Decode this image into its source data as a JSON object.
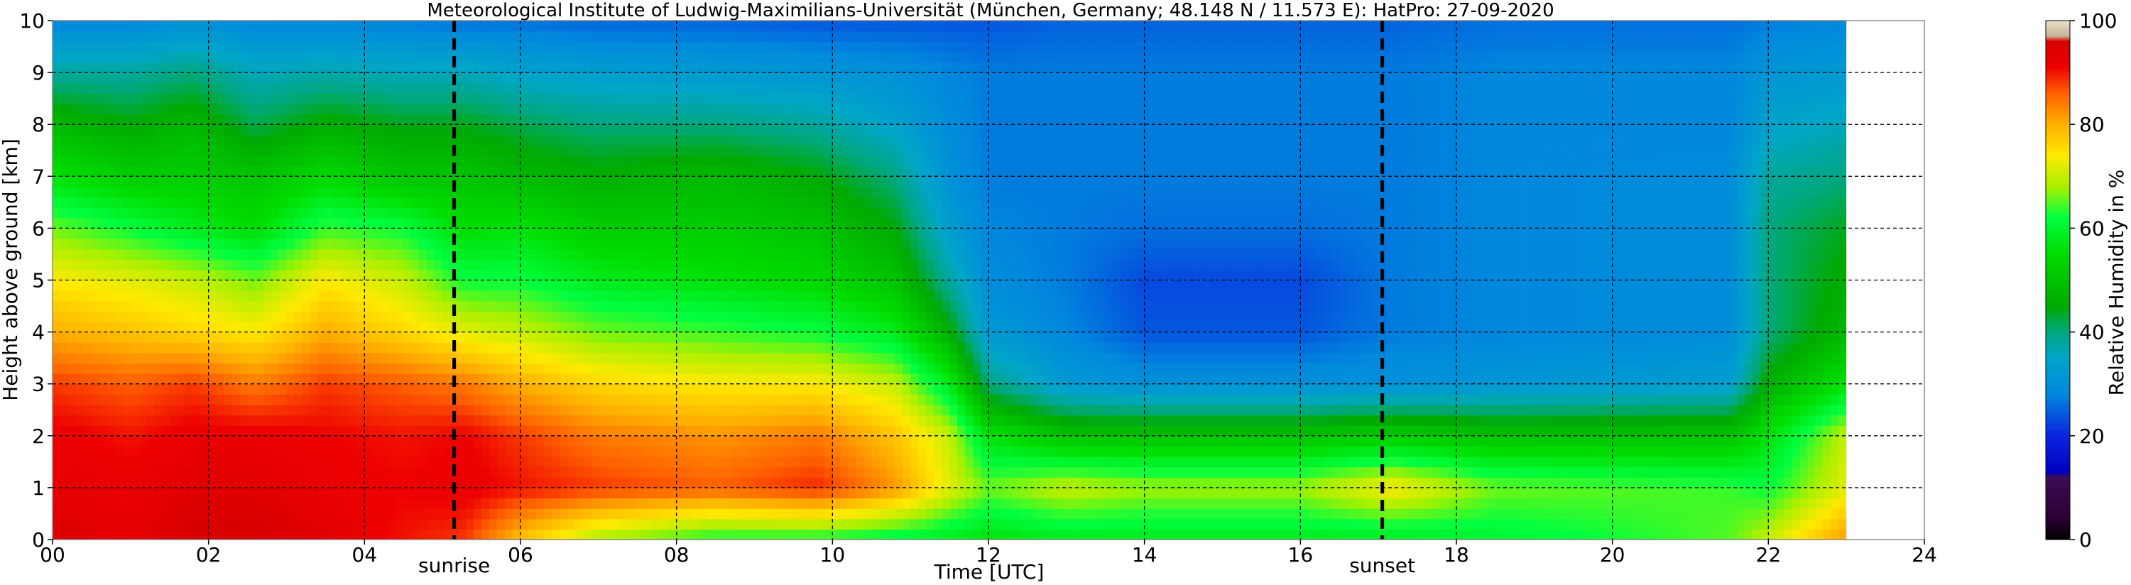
{
  "chart_data": {
    "type": "heatmap",
    "title": "Meteorological Institute of Ludwig-Maximilians-Universität (München, Germany; 48.148 N / 11.573 E):    HatPro: 27-09-2020",
    "xlabel": "Time [UTC]",
    "ylabel": "Height above ground [km]",
    "xlim": [
      0,
      24
    ],
    "ylim": [
      0,
      10
    ],
    "x_ticks": [
      "00",
      "02",
      "04",
      "06",
      "08",
      "10",
      "12",
      "14",
      "16",
      "18",
      "20",
      "22",
      "24"
    ],
    "x_tick_values": [
      0,
      2,
      4,
      6,
      8,
      10,
      12,
      14,
      16,
      18,
      20,
      22,
      24
    ],
    "y_ticks": [
      "0",
      "1",
      "2",
      "3",
      "4",
      "5",
      "6",
      "7",
      "8",
      "9",
      "10"
    ],
    "y_tick_values": [
      0,
      1,
      2,
      3,
      4,
      5,
      6,
      7,
      8,
      9,
      10
    ],
    "grid": true,
    "data_end_time": 23,
    "events": [
      {
        "label": "sunrise",
        "time": 5.15
      },
      {
        "label": "sunset",
        "time": 17.05
      }
    ],
    "colorbar": {
      "label": "Relative Humidity in %",
      "ticks": [
        "0",
        "20",
        "40",
        "60",
        "80",
        "100"
      ],
      "tick_values": [
        0,
        20,
        40,
        60,
        80,
        100
      ],
      "range": [
        0,
        100
      ],
      "stops": [
        {
          "v": 0,
          "c": "#000000"
        },
        {
          "v": 4,
          "c": "#2a0033"
        },
        {
          "v": 12,
          "c": "#3d0c55"
        },
        {
          "v": 13,
          "c": "#0000c0"
        },
        {
          "v": 20,
          "c": "#0a24e0"
        },
        {
          "v": 28,
          "c": "#0088dd"
        },
        {
          "v": 35,
          "c": "#00a6c8"
        },
        {
          "v": 40,
          "c": "#00a880"
        },
        {
          "v": 45,
          "c": "#00aa00"
        },
        {
          "v": 55,
          "c": "#00dd00"
        },
        {
          "v": 62,
          "c": "#00ff40"
        },
        {
          "v": 68,
          "c": "#a8f000"
        },
        {
          "v": 74,
          "c": "#ffea00"
        },
        {
          "v": 80,
          "c": "#ffb000"
        },
        {
          "v": 86,
          "c": "#ff6000"
        },
        {
          "v": 91,
          "c": "#ee0000"
        },
        {
          "v": 96,
          "c": "#d80000"
        },
        {
          "v": 97,
          "c": "#c8b496"
        },
        {
          "v": 100,
          "c": "#e8e0c8"
        }
      ]
    },
    "rh_profiles": [
      {
        "t": 0.0,
        "h": [
          0,
          1,
          2,
          3,
          4,
          5,
          6,
          7,
          8,
          9,
          10
        ],
        "rh": [
          95,
          93,
          92,
          88,
          80,
          74,
          66,
          56,
          48,
          38,
          28
        ]
      },
      {
        "t": 1.0,
        "h": [
          0,
          1,
          2,
          3,
          4,
          5,
          6,
          7,
          8,
          9,
          10
        ],
        "rh": [
          93,
          92,
          90,
          86,
          78,
          72,
          62,
          52,
          45,
          38,
          28
        ]
      },
      {
        "t": 1.8,
        "h": [
          0,
          1,
          2,
          3,
          4,
          5,
          6,
          7,
          8,
          9,
          10
        ],
        "rh": [
          96,
          94,
          92,
          88,
          76,
          70,
          58,
          52,
          48,
          40,
          30
        ]
      },
      {
        "t": 2.6,
        "h": [
          0,
          1,
          2,
          3,
          4,
          5,
          6,
          7,
          8,
          9,
          10
        ],
        "rh": [
          96,
          94,
          92,
          84,
          74,
          66,
          55,
          50,
          42,
          36,
          28
        ]
      },
      {
        "t": 3.5,
        "h": [
          0,
          1,
          2,
          3,
          4,
          5,
          6,
          7,
          8,
          9,
          10
        ],
        "rh": [
          94,
          92,
          91,
          88,
          80,
          74,
          64,
          54,
          46,
          37,
          28
        ]
      },
      {
        "t": 4.5,
        "h": [
          0,
          1,
          2,
          3,
          4,
          5,
          6,
          7,
          8,
          9,
          10
        ],
        "rh": [
          90,
          91,
          90,
          86,
          76,
          70,
          62,
          50,
          44,
          36,
          27
        ]
      },
      {
        "t": 5.3,
        "h": [
          0,
          1,
          2,
          3,
          4,
          5,
          6,
          7,
          8,
          9,
          10
        ],
        "rh": [
          88,
          92,
          91,
          84,
          72,
          62,
          55,
          50,
          44,
          36,
          26
        ]
      },
      {
        "t": 6.0,
        "h": [
          0,
          1,
          2,
          3,
          4,
          5,
          6,
          7,
          8,
          9,
          10
        ],
        "rh": [
          78,
          90,
          88,
          80,
          70,
          62,
          56,
          48,
          42,
          34,
          26
        ]
      },
      {
        "t": 7.0,
        "h": [
          0,
          1,
          2,
          3,
          4,
          5,
          6,
          7,
          8,
          9,
          10
        ],
        "rh": [
          68,
          88,
          84,
          76,
          66,
          58,
          52,
          46,
          40,
          33,
          25
        ]
      },
      {
        "t": 8.5,
        "h": [
          0,
          1,
          2,
          3,
          4,
          5,
          6,
          7,
          8,
          9,
          10
        ],
        "rh": [
          62,
          86,
          82,
          74,
          64,
          56,
          52,
          48,
          40,
          32,
          25
        ]
      },
      {
        "t": 9.8,
        "h": [
          0,
          1,
          2,
          3,
          4,
          5,
          6,
          7,
          8,
          9,
          10
        ],
        "rh": [
          62,
          89,
          84,
          74,
          62,
          54,
          50,
          45,
          38,
          31,
          24
        ]
      },
      {
        "t": 10.8,
        "h": [
          0,
          1,
          2,
          3,
          4,
          5,
          6,
          7,
          8,
          9,
          10
        ],
        "rh": [
          60,
          82,
          78,
          70,
          58,
          50,
          45,
          40,
          34,
          30,
          24
        ]
      },
      {
        "t": 11.5,
        "h": [
          0,
          1,
          2,
          3,
          4,
          5,
          6,
          7,
          8,
          9,
          10
        ],
        "rh": [
          58,
          72,
          70,
          58,
          46,
          38,
          33,
          30,
          29,
          28,
          24
        ]
      },
      {
        "t": 12.0,
        "h": [
          0,
          1,
          2,
          3,
          4,
          5,
          6,
          7,
          8,
          9,
          10
        ],
        "rh": [
          56,
          66,
          56,
          40,
          32,
          29,
          28,
          27,
          27,
          27,
          24
        ]
      },
      {
        "t": 13.0,
        "h": [
          0,
          1,
          2,
          3,
          4,
          5,
          6,
          7,
          8,
          9,
          10
        ],
        "rh": [
          58,
          70,
          50,
          32,
          28,
          27,
          27,
          27,
          27,
          27,
          25
        ]
      },
      {
        "t": 14.0,
        "h": [
          0,
          1,
          2,
          3,
          4,
          5,
          6,
          7,
          8,
          9,
          10
        ],
        "rh": [
          58,
          68,
          50,
          30,
          24,
          23,
          26,
          27,
          27,
          27,
          25
        ]
      },
      {
        "t": 16.0,
        "h": [
          0,
          1,
          2,
          3,
          4,
          5,
          6,
          7,
          8,
          9,
          10
        ],
        "rh": [
          58,
          68,
          50,
          30,
          24,
          23,
          26,
          27,
          27,
          27,
          25
        ]
      },
      {
        "t": 17.2,
        "h": [
          0,
          1,
          2,
          3,
          4,
          5,
          6,
          7,
          8,
          9,
          10
        ],
        "rh": [
          58,
          74,
          52,
          30,
          27,
          27,
          27,
          27,
          27,
          27,
          25
        ]
      },
      {
        "t": 18.5,
        "h": [
          0,
          1,
          2,
          3,
          4,
          5,
          6,
          7,
          8,
          9,
          10
        ],
        "rh": [
          60,
          66,
          50,
          31,
          28,
          28,
          28,
          28,
          28,
          28,
          26
        ]
      },
      {
        "t": 21.5,
        "h": [
          0,
          1,
          2,
          3,
          4,
          5,
          6,
          7,
          8,
          9,
          10
        ],
        "rh": [
          65,
          64,
          50,
          33,
          29,
          29,
          29,
          29,
          28,
          28,
          26
        ]
      },
      {
        "t": 22.0,
        "h": [
          0,
          1,
          2,
          3,
          4,
          5,
          6,
          7,
          8,
          9,
          10
        ],
        "rh": [
          70,
          62,
          56,
          46,
          40,
          40,
          40,
          38,
          34,
          31,
          27
        ]
      },
      {
        "t": 23.0,
        "h": [
          0,
          1,
          2,
          3,
          4,
          5,
          6,
          7,
          8,
          9,
          10
        ],
        "rh": [
          82,
          72,
          70,
          56,
          48,
          46,
          44,
          40,
          36,
          32,
          28
        ]
      }
    ]
  }
}
